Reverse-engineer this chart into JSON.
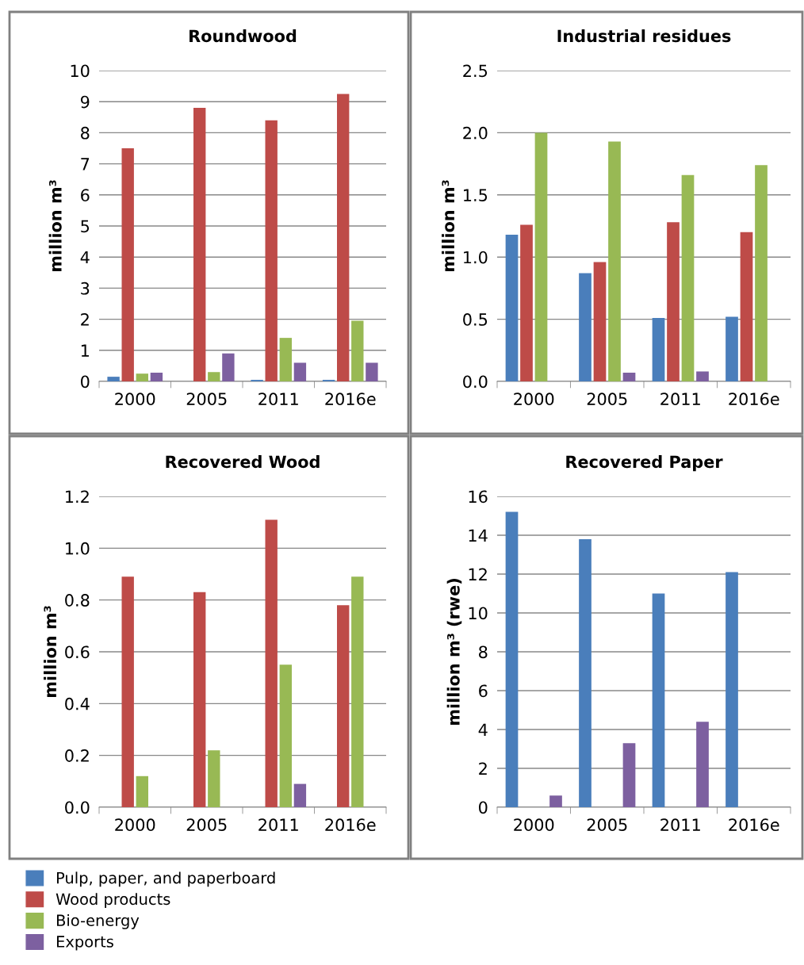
{
  "chart_data": [
    {
      "type": "bar",
      "title": "Roundwood",
      "ylabel": "million m³",
      "categories": [
        "2000",
        "2005",
        "2011",
        "2016e"
      ],
      "ylim": [
        0,
        10
      ],
      "yticks": [
        0,
        1,
        2,
        3,
        4,
        5,
        6,
        7,
        8,
        9,
        10
      ],
      "grid": "y",
      "legend": "bottom",
      "series": [
        {
          "name": "Pulp, paper, and paperboard",
          "color": "#4a7ebb",
          "values": [
            0.15,
            null,
            0.05,
            0.05
          ]
        },
        {
          "name": "Wood products",
          "color": "#be4b48",
          "values": [
            7.5,
            8.8,
            8.4,
            9.25
          ]
        },
        {
          "name": "Bio-energy",
          "color": "#98b954",
          "values": [
            0.25,
            0.3,
            1.4,
            1.95
          ]
        },
        {
          "name": "Exports",
          "color": "#7d60a0",
          "values": [
            0.28,
            0.9,
            0.6,
            0.6
          ]
        }
      ]
    },
    {
      "type": "bar",
      "title": "Industrial residues",
      "ylabel": "million m³",
      "categories": [
        "2000",
        "2005",
        "2011",
        "2016e"
      ],
      "ylim": [
        0,
        2.5
      ],
      "yticks": [
        {
          "value": 0,
          "label": "0.0"
        },
        {
          "value": 0.5,
          "label": "0.5"
        },
        {
          "value": 1,
          "label": "1.0"
        },
        {
          "value": 1.5,
          "label": "1.5"
        },
        {
          "value": 2,
          "label": "2.0"
        },
        {
          "value": 2.5,
          "label": "2.5"
        }
      ],
      "grid": "y",
      "series": [
        {
          "color": "#4a7ebb",
          "values": [
            1.18,
            0.87,
            0.51,
            0.52
          ]
        },
        {
          "color": "#be4b48",
          "values": [
            1.26,
            0.96,
            1.28,
            1.2
          ]
        },
        {
          "color": "#98b954",
          "values": [
            2.0,
            1.93,
            1.66,
            1.74
          ]
        },
        {
          "color": "#7d60a0",
          "values": [
            null,
            0.07,
            0.08,
            null
          ]
        }
      ]
    },
    {
      "type": "bar",
      "title": "Recovered Wood",
      "ylabel": "million m³",
      "categories": [
        "2000",
        "2005",
        "2011",
        "2016e"
      ],
      "ylim": [
        0,
        1.2
      ],
      "yticks": [
        {
          "value": 0,
          "label": "0.0"
        },
        {
          "value": 0.2,
          "label": "0.2"
        },
        {
          "value": 0.4,
          "label": "0.4"
        },
        {
          "value": 0.6,
          "label": "0.6"
        },
        {
          "value": 0.8,
          "label": "0.8"
        },
        {
          "value": 1,
          "label": "1.0"
        },
        {
          "value": 1.2,
          "label": "1.2"
        }
      ],
      "grid": "y",
      "series": [
        {
          "color": "#4a7ebb",
          "values": [
            null,
            null,
            null,
            null
          ]
        },
        {
          "color": "#be4b48",
          "values": [
            0.89,
            0.83,
            1.11,
            0.78
          ]
        },
        {
          "color": "#98b954",
          "values": [
            0.12,
            0.22,
            0.55,
            0.89
          ]
        },
        {
          "color": "#7d60a0",
          "values": [
            null,
            null,
            0.09,
            null
          ]
        }
      ]
    },
    {
      "type": "bar",
      "title": "Recovered Paper",
      "ylabel": "million m³ (rwe)",
      "categories": [
        "2000",
        "2005",
        "2011",
        "2016e"
      ],
      "ylim": [
        0,
        16
      ],
      "yticks": [
        0,
        2,
        4,
        6,
        8,
        10,
        12,
        14,
        16
      ],
      "grid": "y",
      "series": [
        {
          "color": "#4a7ebb",
          "values": [
            15.2,
            13.8,
            11.0,
            12.1
          ]
        },
        {
          "color": "#be4b48",
          "values": [
            null,
            null,
            null,
            null
          ]
        },
        {
          "color": "#98b954",
          "values": [
            null,
            null,
            null,
            null
          ]
        },
        {
          "color": "#7d60a0",
          "values": [
            0.6,
            3.3,
            4.4,
            null
          ]
        }
      ]
    }
  ]
}
